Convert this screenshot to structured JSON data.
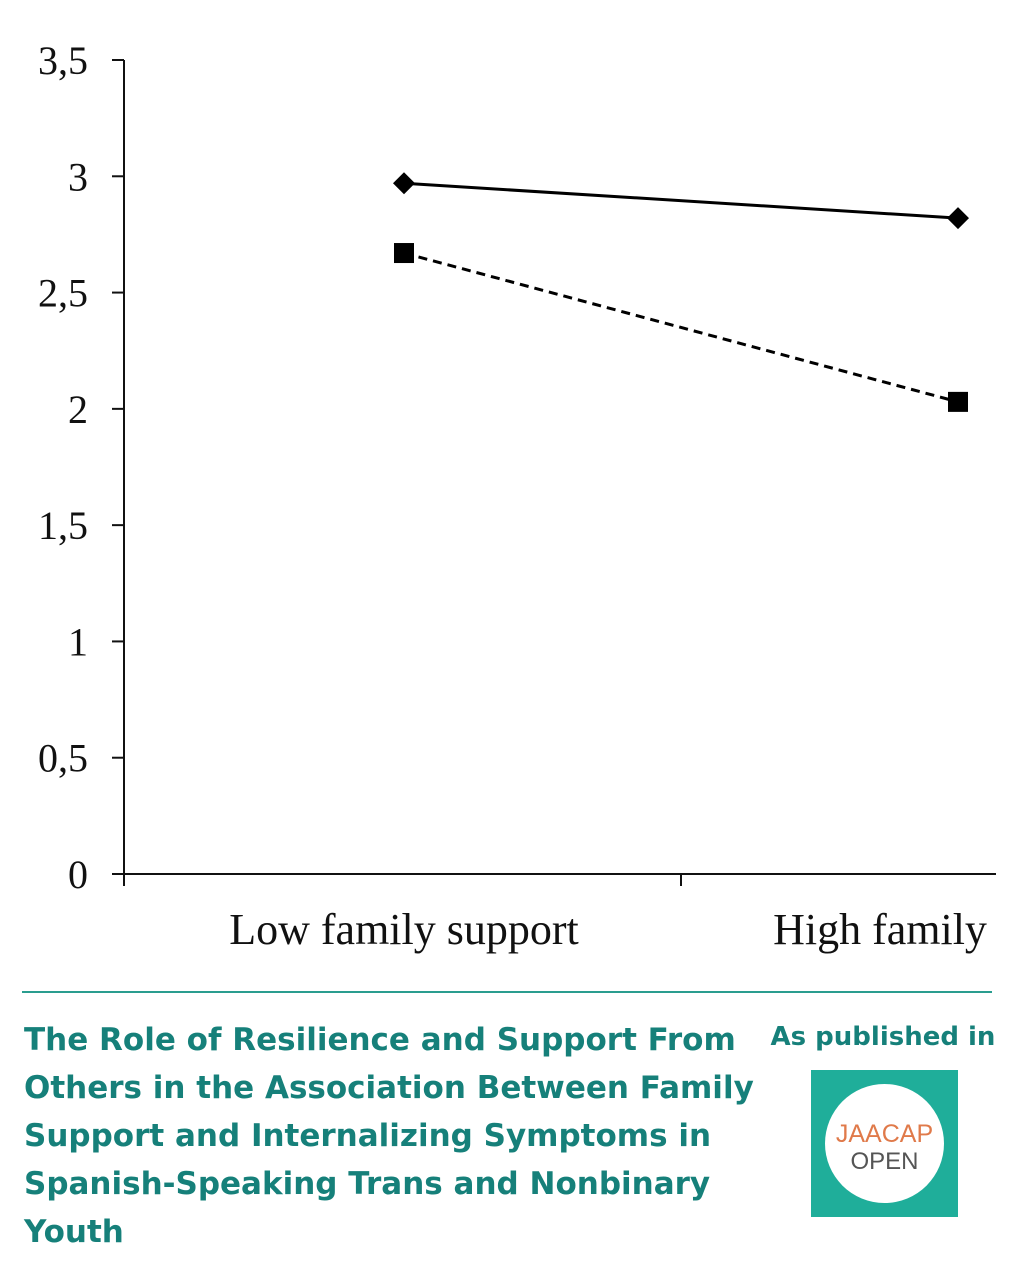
{
  "chart_data": {
    "type": "line",
    "categories": [
      "Low family support",
      "High family"
    ],
    "series": [
      {
        "values": [
          2.97,
          2.82
        ],
        "marker": "diamond",
        "line_style": "solid"
      },
      {
        "values": [
          2.67,
          2.03
        ],
        "marker": "square",
        "line_style": "dashed"
      }
    ],
    "y_ticks": [
      "0",
      "0,5",
      "1",
      "1,5",
      "2",
      "2,5",
      "3",
      "3,5"
    ],
    "ylim": [
      0,
      3.5
    ],
    "grid": false,
    "colors": {
      "series": "#000000",
      "axis": "#111111"
    }
  },
  "caption": {
    "title": "The Role of Resilience and Support From Others in the Association Between Family Support and Internalizing Symptoms in Spanish-Speaking Trans and Nonbinary Youth",
    "published_label": "As published in",
    "logo_top": "JAACAP",
    "logo_bottom": "OPEN",
    "colors": {
      "accent": "#16807a",
      "logo_bg": "#1fae9a",
      "logo_orange": "#e07a4a"
    }
  }
}
